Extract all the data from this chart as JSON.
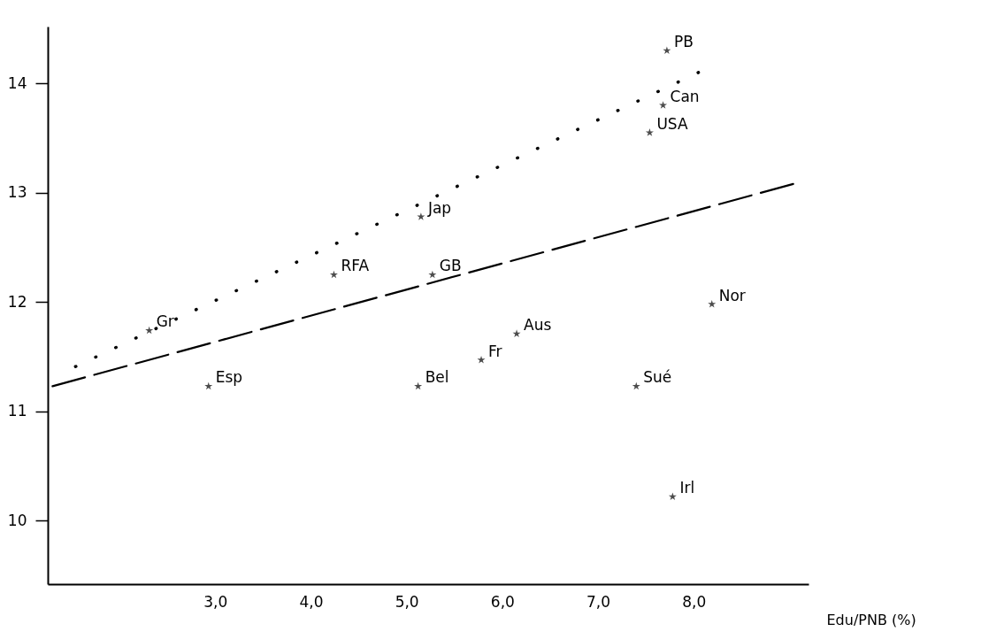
{
  "chart_data": {
    "type": "scatter",
    "xlabel": "Edu/PNB (%)",
    "xlim": [
      1.25,
      9.2
    ],
    "ylim": [
      9.42,
      14.52
    ],
    "xticks": [
      {
        "value": 3,
        "label": "3,0"
      },
      {
        "value": 4,
        "label": "4,0"
      },
      {
        "value": 5,
        "label": "5,0"
      },
      {
        "value": 6,
        "label": "6,0"
      },
      {
        "value": 7,
        "label": "7,0"
      },
      {
        "value": 8,
        "label": "8,0"
      }
    ],
    "yticks": [
      10,
      11,
      12,
      13,
      14
    ],
    "grid": false,
    "legend": false,
    "marker": "star",
    "series": [
      {
        "type": "scatter",
        "color": "#000000",
        "x": [
          7.72,
          7.68,
          7.54,
          5.15,
          4.24,
          5.27,
          2.31,
          6.15,
          8.19,
          5.78,
          2.93,
          5.12,
          7.4,
          7.78
        ],
        "values": [
          14.3,
          13.8,
          13.55,
          12.78,
          12.25,
          12.25,
          11.74,
          11.71,
          11.98,
          11.47,
          11.23,
          11.23,
          11.23,
          10.22
        ]
      },
      {
        "type": "line",
        "color": "#000000",
        "line_style": "dotted",
        "marker": "none",
        "x": [
          1.54,
          8.05
        ],
        "values": [
          11.41,
          14.1
        ]
      },
      {
        "type": "line",
        "color": "#000000",
        "line_style": "dashed",
        "marker": "none",
        "x": [
          1.3,
          9.04
        ],
        "values": [
          11.23,
          13.08
        ]
      }
    ],
    "annotations": [
      {
        "text": "PB",
        "x": 7.72,
        "y": 14.3
      },
      {
        "text": "Can",
        "x": 7.68,
        "y": 13.8
      },
      {
        "text": "USA",
        "x": 7.54,
        "y": 13.55
      },
      {
        "text": "Jap",
        "x": 5.15,
        "y": 12.78
      },
      {
        "text": "RFA",
        "x": 4.24,
        "y": 12.25
      },
      {
        "text": "GB",
        "x": 5.27,
        "y": 12.25
      },
      {
        "text": "Gr",
        "x": 2.31,
        "y": 11.74
      },
      {
        "text": "Aus",
        "x": 6.15,
        "y": 11.71
      },
      {
        "text": "Nor",
        "x": 8.19,
        "y": 11.98
      },
      {
        "text": "Fr",
        "x": 5.78,
        "y": 11.47
      },
      {
        "text": "Esp",
        "x": 2.93,
        "y": 11.23
      },
      {
        "text": "Bel",
        "x": 5.12,
        "y": 11.23
      },
      {
        "text": "Sué",
        "x": 7.4,
        "y": 11.23
      },
      {
        "text": "Irl",
        "x": 7.78,
        "y": 10.22
      }
    ]
  }
}
